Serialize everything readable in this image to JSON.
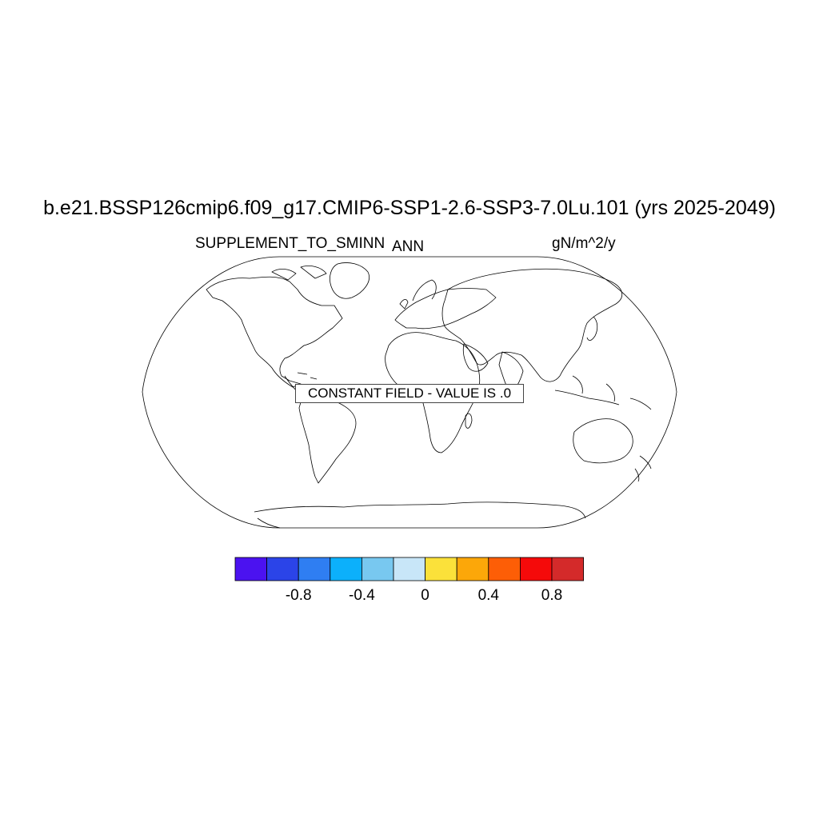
{
  "figure": {
    "title": "b.e21.BSSP126cmip6.f09_g17.CMIP6-SSP1-2.6-SSP3-7.0Lu.101 (yrs 2025-2049)",
    "left_subtitle": "SUPPLEMENT_TO_SMINN",
    "center_subtitle": "ANN",
    "right_subtitle": "gN/m^2/y",
    "message": "CONSTANT FIELD - VALUE IS .0"
  },
  "map": {
    "projection": "Robinson",
    "coastlines": true,
    "field_value": 0
  },
  "colorbar": {
    "colors": [
      "#4b12f0",
      "#2b44e8",
      "#2f7ef2",
      "#0cb0fb",
      "#78c8f0",
      "#c8e6f8",
      "#fbe13a",
      "#fca709",
      "#fd5e06",
      "#f50a0a",
      "#d42a2a"
    ],
    "tick_labels": [
      "-0.8",
      "-0.4",
      "0",
      "0.4",
      "0.8"
    ]
  }
}
